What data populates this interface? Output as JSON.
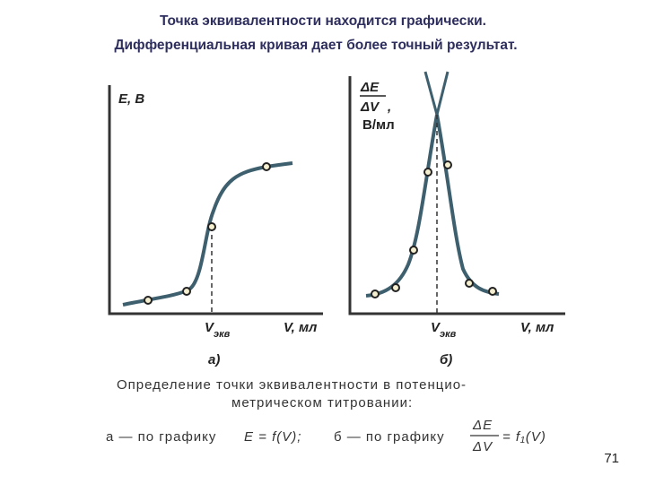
{
  "header": {
    "title": [
      "Точка эквивалентности находится графически.",
      "Дифференциальная кривая  дает более точный результат."
    ]
  },
  "figures": [
    {
      "y_label": "E, В",
      "x_marker": "V",
      "x_marker_sub": "экв",
      "x_label": "V, мл",
      "label": "а)"
    },
    {
      "y_label_num": "ΔE",
      "y_label_den": "ΔV",
      "y_label_sep": ",",
      "y_label_unit": "В/мл",
      "x_marker": "V",
      "x_marker_sub": "экв",
      "x_label": "V, мл",
      "label": "б)"
    }
  ],
  "caption": [
    "Определение точки эквивалентности в потенцио-",
    "метрическом титровании:"
  ],
  "formula": {
    "a": "а — по графику",
    "a_eq": "E = f(V);",
    "b": "б — по графику",
    "b_num": "ΔE",
    "b_den": "ΔV",
    "b_eq": "= f₁(V)"
  },
  "page_number": "71"
}
